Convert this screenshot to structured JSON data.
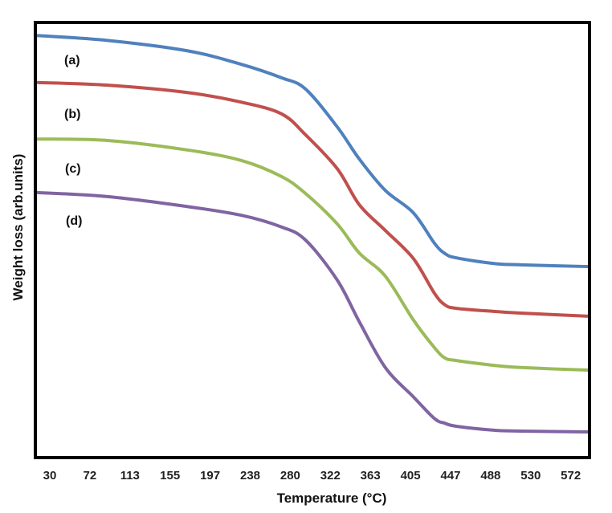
{
  "chart_data": {
    "type": "line",
    "title": "",
    "xlabel": "Temperature (°C)",
    "ylabel": "Weight loss (arb.units)",
    "x_tick_labels": [
      "30",
      "72",
      "113",
      "155",
      "197",
      "238",
      "280",
      "322",
      "363",
      "405",
      "447",
      "488",
      "530",
      "572"
    ],
    "xlim": [
      17,
      590
    ],
    "ylim": [
      0,
      100
    ],
    "y_ticks_shown": false,
    "grid": false,
    "legend": "none",
    "x": [
      17,
      89,
      173,
      229,
      271,
      296,
      329,
      352,
      379,
      408,
      430,
      441,
      453,
      492,
      520,
      590
    ],
    "series": [
      {
        "name": "(a)",
        "color": "#4f81bd",
        "values": [
          97.0,
          95.9,
          93.5,
          90.4,
          87.3,
          84.7,
          76.0,
          68.6,
          61.4,
          56.3,
          49.3,
          46.9,
          45.9,
          44.6,
          44.3,
          43.9
        ]
      },
      {
        "name": "(b)",
        "color": "#c0504d",
        "values": [
          86.2,
          85.6,
          83.9,
          81.7,
          79.0,
          74.2,
          66.4,
          58.1,
          52.2,
          45.8,
          37.8,
          35.1,
          34.3,
          33.6,
          33.2,
          32.5
        ]
      },
      {
        "name": "(c)",
        "color": "#9bbb59",
        "values": [
          73.2,
          72.9,
          70.7,
          68.3,
          64.6,
          60.7,
          53.7,
          47.0,
          41.7,
          31.7,
          25.3,
          22.9,
          22.3,
          21.2,
          20.7,
          20.1
        ]
      },
      {
        "name": "(d)",
        "color": "#8064a2",
        "values": [
          60.9,
          60.0,
          57.7,
          55.7,
          53.0,
          50.0,
          40.8,
          31.2,
          20.7,
          14.0,
          9.0,
          7.9,
          7.2,
          6.3,
          6.1,
          5.9
        ]
      }
    ]
  }
}
